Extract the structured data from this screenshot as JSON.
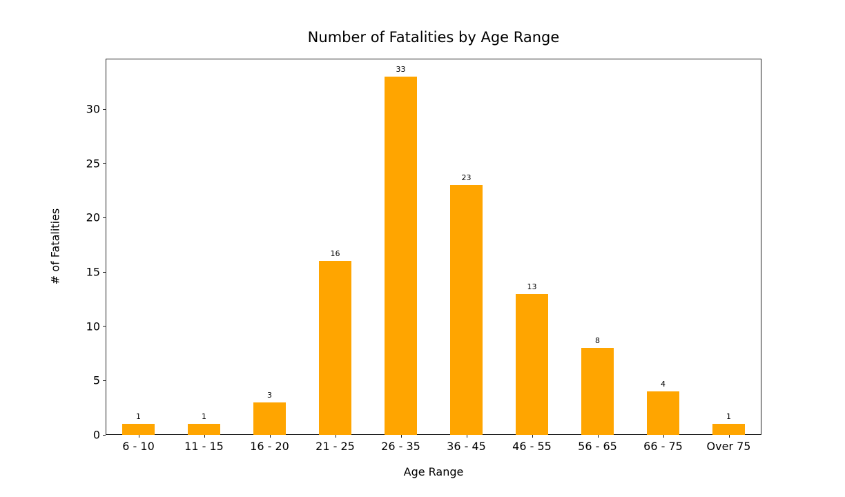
{
  "chart_data": {
    "type": "bar",
    "title": "Number of Fatalities by Age Range",
    "xlabel": "Age Range",
    "ylabel": "# of Fatalities",
    "categories": [
      "6 - 10",
      "11 - 15",
      "16 - 20",
      "21 - 25",
      "26 - 35",
      "36 - 45",
      "46 - 55",
      "56 - 65",
      "66 - 75",
      "Over 75"
    ],
    "values": [
      1,
      1,
      3,
      16,
      33,
      23,
      13,
      8,
      4,
      1
    ],
    "bar_labels": [
      "1",
      "1",
      "3",
      "16",
      "33",
      "23",
      "13",
      "8",
      "4",
      "1"
    ],
    "yticks": [
      0,
      5,
      10,
      15,
      20,
      25,
      30
    ],
    "ylim": [
      0,
      34.65
    ],
    "bar_color": "#FFA500",
    "text_color": "#000000",
    "spine_color": "#1a1a1a",
    "grid": false,
    "legend": null
  }
}
